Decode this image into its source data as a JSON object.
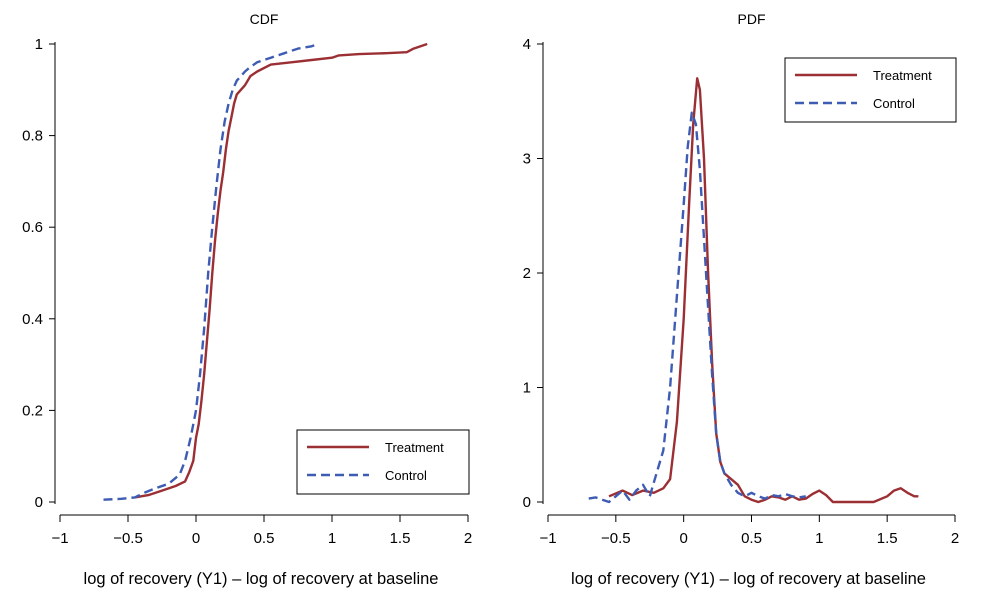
{
  "colors": {
    "treatment": "#9b2f33",
    "control": "#3e5cb4"
  },
  "chart_data": [
    {
      "type": "line",
      "title": "CDF",
      "xlabel": "log of recovery (Y1) – log of recovery at baseline",
      "ylabel": "",
      "xlim": [
        -1,
        2
      ],
      "ylim": [
        0,
        1
      ],
      "xticks": [
        -1,
        -0.5,
        0,
        0.5,
        1,
        1.5,
        2
      ],
      "xtick_labels": [
        "−1",
        "−0.5",
        "0",
        "0.5",
        "1",
        "1.5",
        "2"
      ],
      "yticks": [
        0,
        0.2,
        0.4,
        0.6,
        0.8,
        1
      ],
      "ytick_labels": [
        "0",
        "0.2",
        "0.4",
        "0.6",
        "0.8",
        "1"
      ],
      "grid": false,
      "legend_position": "bottom-right",
      "series": [
        {
          "name": "Treatment",
          "style": "solid",
          "x": [
            -0.45,
            -0.35,
            -0.25,
            -0.15,
            -0.08,
            -0.05,
            -0.02,
            0.0,
            0.02,
            0.04,
            0.06,
            0.08,
            0.1,
            0.12,
            0.14,
            0.16,
            0.18,
            0.2,
            0.22,
            0.24,
            0.26,
            0.28,
            0.3,
            0.33,
            0.36,
            0.4,
            0.45,
            0.55,
            0.7,
            0.85,
            1.0,
            1.05,
            1.2,
            1.4,
            1.55,
            1.6,
            1.7
          ],
          "y": [
            0.01,
            0.015,
            0.025,
            0.035,
            0.045,
            0.065,
            0.09,
            0.14,
            0.17,
            0.22,
            0.28,
            0.35,
            0.42,
            0.5,
            0.57,
            0.63,
            0.68,
            0.72,
            0.77,
            0.81,
            0.84,
            0.87,
            0.89,
            0.9,
            0.91,
            0.93,
            0.94,
            0.955,
            0.96,
            0.965,
            0.97,
            0.975,
            0.978,
            0.98,
            0.982,
            0.99,
            1.0
          ]
        },
        {
          "name": "Control",
          "style": "dashed",
          "x": [
            -0.68,
            -0.55,
            -0.45,
            -0.38,
            -0.3,
            -0.2,
            -0.12,
            -0.08,
            -0.04,
            0.0,
            0.03,
            0.06,
            0.09,
            0.12,
            0.15,
            0.18,
            0.21,
            0.24,
            0.27,
            0.3,
            0.33,
            0.36,
            0.4,
            0.45,
            0.55,
            0.65,
            0.75,
            0.85,
            0.9
          ],
          "y": [
            0.005,
            0.007,
            0.01,
            0.02,
            0.03,
            0.04,
            0.06,
            0.09,
            0.14,
            0.2,
            0.28,
            0.38,
            0.5,
            0.6,
            0.69,
            0.77,
            0.83,
            0.87,
            0.9,
            0.92,
            0.93,
            0.94,
            0.95,
            0.96,
            0.97,
            0.98,
            0.99,
            0.995,
            1.0
          ]
        }
      ]
    },
    {
      "type": "line",
      "title": "PDF",
      "xlabel": "log of recovery (Y1) – log of recovery at baseline",
      "ylabel": "",
      "xlim": [
        -1,
        2
      ],
      "ylim": [
        0,
        4
      ],
      "xticks": [
        -1,
        -0.5,
        0,
        0.5,
        1,
        1.5,
        2
      ],
      "xtick_labels": [
        "−1",
        "−0.5",
        "0",
        "0.5",
        "1",
        "1.5",
        "2"
      ],
      "yticks": [
        0,
        1,
        2,
        3,
        4
      ],
      "ytick_labels": [
        "0",
        "1",
        "2",
        "3",
        "4"
      ],
      "grid": false,
      "legend_position": "top-right",
      "series": [
        {
          "name": "Treatment",
          "style": "solid",
          "x": [
            -0.55,
            -0.45,
            -0.38,
            -0.3,
            -0.22,
            -0.15,
            -0.1,
            -0.05,
            0.0,
            0.04,
            0.07,
            0.1,
            0.12,
            0.15,
            0.18,
            0.21,
            0.24,
            0.27,
            0.3,
            0.35,
            0.4,
            0.45,
            0.5,
            0.55,
            0.6,
            0.65,
            0.7,
            0.75,
            0.8,
            0.85,
            0.9,
            0.95,
            1.0,
            1.05,
            1.1,
            1.15,
            1.2,
            1.3,
            1.4,
            1.5,
            1.55,
            1.6,
            1.65,
            1.7,
            1.73
          ],
          "y": [
            0.05,
            0.1,
            0.06,
            0.1,
            0.08,
            0.12,
            0.2,
            0.7,
            1.6,
            2.6,
            3.3,
            3.7,
            3.6,
            3.0,
            2.0,
            1.2,
            0.6,
            0.35,
            0.25,
            0.2,
            0.15,
            0.05,
            0.02,
            0.0,
            0.02,
            0.05,
            0.04,
            0.02,
            0.05,
            0.02,
            0.03,
            0.07,
            0.1,
            0.06,
            0.0,
            0.0,
            0.0,
            0.0,
            0.0,
            0.05,
            0.1,
            0.12,
            0.08,
            0.05,
            0.05
          ]
        },
        {
          "name": "Control",
          "style": "dashed",
          "x": [
            -0.7,
            -0.65,
            -0.6,
            -0.55,
            -0.5,
            -0.45,
            -0.4,
            -0.35,
            -0.3,
            -0.25,
            -0.2,
            -0.15,
            -0.1,
            -0.05,
            0.0,
            0.03,
            0.06,
            0.09,
            0.12,
            0.15,
            0.18,
            0.21,
            0.24,
            0.27,
            0.3,
            0.35,
            0.4,
            0.45,
            0.5,
            0.55,
            0.6,
            0.65,
            0.7,
            0.75,
            0.8,
            0.85,
            0.9
          ],
          "y": [
            0.03,
            0.04,
            0.02,
            0.0,
            0.05,
            0.1,
            0.02,
            0.1,
            0.15,
            0.05,
            0.25,
            0.45,
            1.0,
            1.8,
            2.6,
            3.1,
            3.4,
            3.3,
            2.9,
            2.3,
            1.7,
            1.1,
            0.6,
            0.35,
            0.25,
            0.15,
            0.08,
            0.05,
            0.08,
            0.05,
            0.03,
            0.06,
            0.05,
            0.07,
            0.05,
            0.04,
            0.05
          ]
        }
      ]
    }
  ]
}
